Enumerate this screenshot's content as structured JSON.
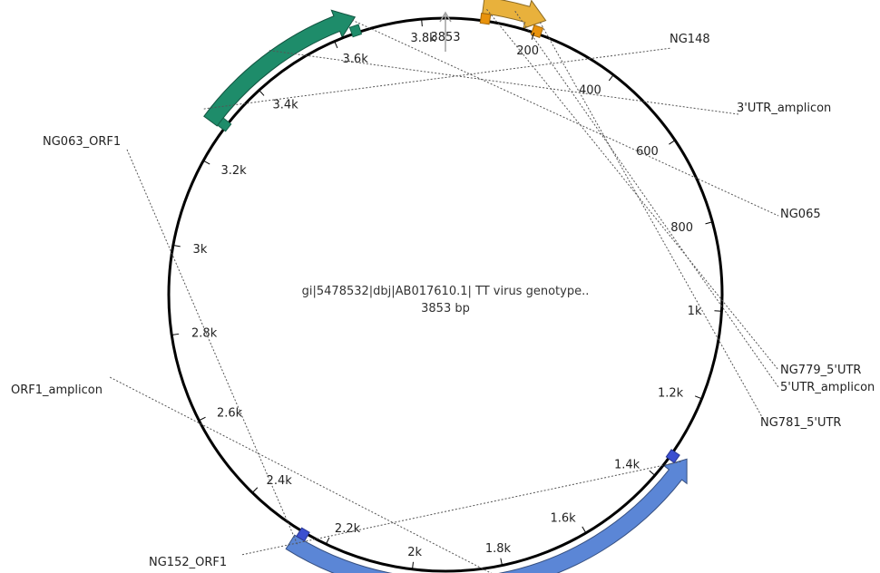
{
  "sequence": {
    "title": "gi|5478532|dbj|AB017610.1| TT virus genotype..",
    "length_label": "3853 bp",
    "length_bp": 3853
  },
  "ticks": [
    {
      "pos": 200,
      "label": "200"
    },
    {
      "pos": 400,
      "label": "400"
    },
    {
      "pos": 600,
      "label": "600"
    },
    {
      "pos": 800,
      "label": "800"
    },
    {
      "pos": 1000,
      "label": "1k"
    },
    {
      "pos": 1200,
      "label": "1.2k"
    },
    {
      "pos": 1400,
      "label": "1.4k"
    },
    {
      "pos": 1600,
      "label": "1.6k"
    },
    {
      "pos": 1800,
      "label": "1.8k"
    },
    {
      "pos": 2000,
      "label": "2k"
    },
    {
      "pos": 2200,
      "label": "2.2k"
    },
    {
      "pos": 2400,
      "label": "2.4k"
    },
    {
      "pos": 2600,
      "label": "2.6k"
    },
    {
      "pos": 2800,
      "label": "2.8k"
    },
    {
      "pos": 3000,
      "label": "3k"
    },
    {
      "pos": 3200,
      "label": "3.2k"
    },
    {
      "pos": 3400,
      "label": "3.4k"
    },
    {
      "pos": 3600,
      "label": "3.6k"
    },
    {
      "pos": 3800,
      "label": "3.8k"
    },
    {
      "pos": 3853,
      "label": "3853"
    }
  ],
  "features": [
    {
      "name": "3'UTR_amplicon",
      "type": "amplicon",
      "color": "#1e8c6a",
      "start": 3280,
      "end": 3660,
      "strand": 1
    },
    {
      "name": "ORF1_amplicon",
      "type": "amplicon",
      "color": "#5b86d6",
      "start": 1330,
      "end": 2270,
      "strand": -1
    },
    {
      "name": "5'UTR_amplicon",
      "type": "amplicon",
      "color": "#e8b13c",
      "start": 80,
      "end": 215,
      "strand": 1
    }
  ],
  "primers": [
    {
      "name": "NG148",
      "color": "#1e8c6a",
      "pos": 3292
    },
    {
      "name": "NG065",
      "color": "#1e8c6a",
      "pos": 3652
    },
    {
      "name": "NG063_ORF1",
      "color": "#3b4fd0",
      "pos": 2255
    },
    {
      "name": "NG152_ORF1",
      "color": "#3b4fd0",
      "pos": 1342
    },
    {
      "name": "NG779_5'UTR",
      "color": "#e8920c",
      "pos": 88
    },
    {
      "name": "NG781_5'UTR",
      "color": "#e8920c",
      "pos": 205
    }
  ]
}
